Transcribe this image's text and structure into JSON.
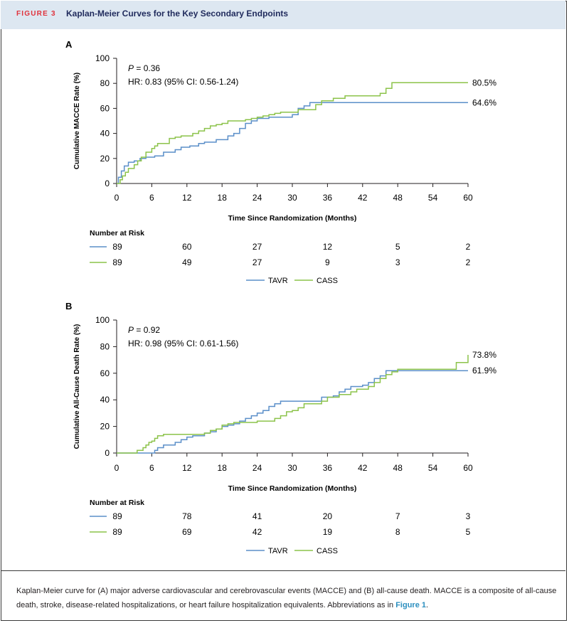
{
  "figure": {
    "label": "FIGURE 3",
    "title": "Kaplan-Meier Curves for the Key Secondary Endpoints"
  },
  "colors": {
    "tavr": "#5b8fc9",
    "cass": "#8cc34a",
    "header_bg": "#dde7f1",
    "label_red": "#e0323c",
    "title_navy": "#1f2a5c",
    "link_blue": "#2c8fbf"
  },
  "legend": {
    "tavr": "TAVR",
    "cass": "CASS"
  },
  "risk_title": "Number at Risk",
  "caption": {
    "text": "Kaplan-Meier curve for (A) major adverse cardiovascular and cerebrovascular events (MACCE) and (B) all-cause death. MACCE is a composite of all-cause death, stroke, disease-related hospitalizations, or heart failure hospitalization equivalents. Abbreviations as in ",
    "link": "Figure 1",
    "end": "."
  },
  "chart_data": [
    {
      "type": "line",
      "panel": "A",
      "ylabel": "Cumulative MACCE Rate (%)",
      "xlabel": "Time Since Randomization (Months)",
      "xlim": [
        0,
        60
      ],
      "ylim": [
        0,
        100
      ],
      "xticks": [
        0,
        6,
        12,
        18,
        24,
        30,
        36,
        42,
        48,
        54,
        60
      ],
      "yticks": [
        0,
        20,
        40,
        60,
        80,
        100
      ],
      "annotation": {
        "p_label": "P",
        "p_value": " = 0.36",
        "hr": "HR: 0.83 (95% CI: 0.56-1.24)"
      },
      "series": [
        {
          "name": "TAVR",
          "end_label": "64.6%",
          "points": [
            [
              0,
              0
            ],
            [
              0.3,
              5
            ],
            [
              0.8,
              10
            ],
            [
              1.3,
              14
            ],
            [
              2,
              17
            ],
            [
              3,
              18
            ],
            [
              4,
              20
            ],
            [
              5,
              21
            ],
            [
              6.5,
              22
            ],
            [
              8,
              25
            ],
            [
              10,
              27
            ],
            [
              11,
              29
            ],
            [
              12.5,
              30
            ],
            [
              14,
              32
            ],
            [
              15,
              33
            ],
            [
              17,
              35
            ],
            [
              19,
              38
            ],
            [
              20,
              40
            ],
            [
              21,
              44
            ],
            [
              22,
              48
            ],
            [
              23,
              50
            ],
            [
              24,
              52
            ],
            [
              26,
              53
            ],
            [
              30,
              55
            ],
            [
              31,
              60
            ],
            [
              32,
              62
            ],
            [
              33,
              64.6
            ],
            [
              60,
              64.6
            ]
          ]
        },
        {
          "name": "CASS",
          "end_label": "80.5%",
          "points": [
            [
              0,
              0
            ],
            [
              0.6,
              3
            ],
            [
              1,
              6
            ],
            [
              1.5,
              9
            ],
            [
              2,
              12
            ],
            [
              3,
              15
            ],
            [
              3.6,
              18
            ],
            [
              4.2,
              21
            ],
            [
              5,
              25
            ],
            [
              6,
              28
            ],
            [
              6.5,
              30
            ],
            [
              7,
              32
            ],
            [
              9,
              36
            ],
            [
              10,
              37
            ],
            [
              11,
              38
            ],
            [
              13,
              40
            ],
            [
              14,
              42
            ],
            [
              15,
              44
            ],
            [
              16,
              46
            ],
            [
              17,
              47
            ],
            [
              18,
              48
            ],
            [
              19,
              50
            ],
            [
              22,
              51
            ],
            [
              23,
              52
            ],
            [
              24,
              53
            ],
            [
              25,
              54
            ],
            [
              26,
              55
            ],
            [
              27,
              56
            ],
            [
              28,
              57
            ],
            [
              31,
              59
            ],
            [
              34,
              63
            ],
            [
              35,
              66
            ],
            [
              37,
              68
            ],
            [
              39,
              70
            ],
            [
              45,
              72
            ],
            [
              46,
              76
            ],
            [
              47,
              80.5
            ],
            [
              60,
              80.5
            ]
          ]
        }
      ],
      "risk_times": [
        0,
        12,
        24,
        36,
        48,
        60
      ],
      "risk": {
        "TAVR": [
          "89",
          "60",
          "27",
          "12",
          "5",
          "2"
        ],
        "CASS": [
          "89",
          "49",
          "27",
          "9",
          "3",
          "2"
        ]
      }
    },
    {
      "type": "line",
      "panel": "B",
      "ylabel": "Cumulative All-Cause Death Rate (%)",
      "xlabel": "Time Since Randomization (Months)",
      "xlim": [
        0,
        60
      ],
      "ylim": [
        0,
        100
      ],
      "xticks": [
        0,
        6,
        12,
        18,
        24,
        30,
        36,
        42,
        48,
        54,
        60
      ],
      "yticks": [
        0,
        20,
        40,
        60,
        80,
        100
      ],
      "annotation": {
        "p_label": "P",
        "p_value": " = 0.92",
        "hr": "HR: 0.98 (95% CI: 0.61-1.56)"
      },
      "series": [
        {
          "name": "TAVR",
          "end_label": "61.9%",
          "points": [
            [
              0,
              0
            ],
            [
              6,
              0
            ],
            [
              6.5,
              2
            ],
            [
              7,
              4
            ],
            [
              8,
              6
            ],
            [
              10,
              8
            ],
            [
              11,
              10
            ],
            [
              12,
              12
            ],
            [
              13,
              13
            ],
            [
              15,
              15
            ],
            [
              16,
              16
            ],
            [
              17,
              18
            ],
            [
              18,
              20
            ],
            [
              19,
              21
            ],
            [
              20,
              22
            ],
            [
              21,
              24
            ],
            [
              22,
              26
            ],
            [
              23,
              28
            ],
            [
              24,
              30
            ],
            [
              25,
              32
            ],
            [
              26,
              35
            ],
            [
              27,
              37
            ],
            [
              28,
              39
            ],
            [
              34,
              39
            ],
            [
              35,
              42
            ],
            [
              37,
              43
            ],
            [
              38,
              46
            ],
            [
              39,
              48
            ],
            [
              40,
              50
            ],
            [
              42,
              51
            ],
            [
              43,
              53
            ],
            [
              44,
              56
            ],
            [
              45,
              58
            ],
            [
              46,
              61.9
            ],
            [
              60,
              61.9
            ]
          ]
        },
        {
          "name": "CASS",
          "end_label": "73.8%",
          "points": [
            [
              0,
              0
            ],
            [
              3,
              0
            ],
            [
              3.5,
              2
            ],
            [
              4.5,
              4
            ],
            [
              5,
              6
            ],
            [
              5.5,
              8
            ],
            [
              6,
              9
            ],
            [
              6.5,
              11
            ],
            [
              7,
              13
            ],
            [
              8,
              14
            ],
            [
              14,
              14
            ],
            [
              15,
              15
            ],
            [
              16,
              17
            ],
            [
              17,
              18
            ],
            [
              18,
              21
            ],
            [
              19,
              22
            ],
            [
              20,
              23
            ],
            [
              24,
              24
            ],
            [
              27,
              26
            ],
            [
              28,
              28
            ],
            [
              29,
              31
            ],
            [
              30,
              32
            ],
            [
              31,
              34
            ],
            [
              32,
              37
            ],
            [
              35,
              39
            ],
            [
              36,
              42
            ],
            [
              38,
              44
            ],
            [
              40,
              46
            ],
            [
              41,
              48
            ],
            [
              43,
              50
            ],
            [
              44,
              53
            ],
            [
              45,
              56
            ],
            [
              46,
              59
            ],
            [
              47,
              61
            ],
            [
              48,
              63
            ],
            [
              57,
              63
            ],
            [
              58,
              68
            ],
            [
              59.8,
              68
            ],
            [
              60,
              73.8
            ]
          ]
        }
      ],
      "risk_times": [
        0,
        12,
        24,
        36,
        48,
        60
      ],
      "risk": {
        "TAVR": [
          "89",
          "78",
          "41",
          "20",
          "7",
          "3"
        ],
        "CASS": [
          "89",
          "69",
          "42",
          "19",
          "8",
          "5"
        ]
      }
    }
  ]
}
